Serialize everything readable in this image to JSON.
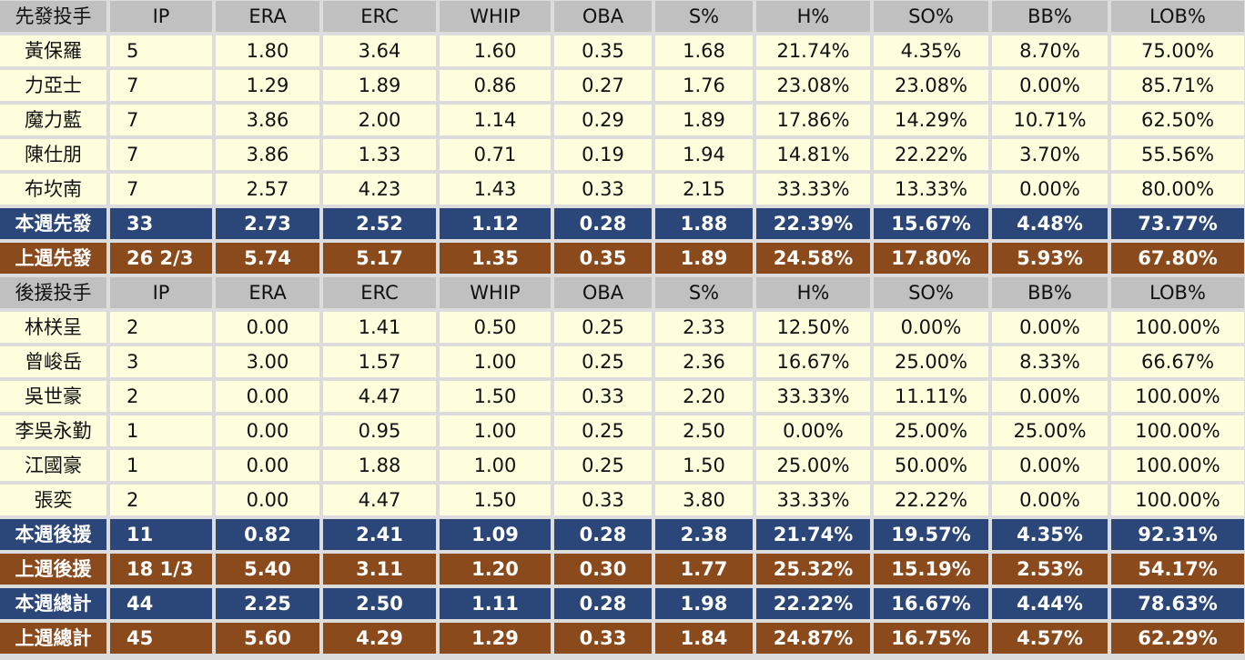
{
  "columns": [
    "IP",
    "ERA",
    "ERC",
    "WHIP",
    "OBA",
    "S%",
    "H%",
    "SO%",
    "BB%",
    "LOB%"
  ],
  "colors": {
    "header": "#c0c0c0",
    "player": "#ffffde",
    "this_week": "#2b4779",
    "last_week": "#8b4a1c"
  },
  "rows": [
    {
      "type": "hd",
      "cells": [
        "先發投手",
        "IP",
        "ERA",
        "ERC",
        "WHIP",
        "OBA",
        "S%",
        "H%",
        "SO%",
        "BB%",
        "LOB%"
      ]
    },
    {
      "type": "pl",
      "cells": [
        "黃保羅",
        "5",
        "1.80",
        "3.64",
        "1.60",
        "0.35",
        "1.68",
        "21.74%",
        "4.35%",
        "8.70%",
        "75.00%"
      ]
    },
    {
      "type": "pl",
      "cells": [
        "力亞士",
        "7",
        "1.29",
        "1.89",
        "0.86",
        "0.27",
        "1.76",
        "23.08%",
        "23.08%",
        "0.00%",
        "85.71%"
      ]
    },
    {
      "type": "pl",
      "cells": [
        "魔力藍",
        "7",
        "3.86",
        "2.00",
        "1.14",
        "0.29",
        "1.89",
        "17.86%",
        "14.29%",
        "10.71%",
        "62.50%"
      ]
    },
    {
      "type": "pl",
      "cells": [
        "陳仕朋",
        "7",
        "3.86",
        "1.33",
        "0.71",
        "0.19",
        "1.94",
        "14.81%",
        "22.22%",
        "3.70%",
        "55.56%"
      ]
    },
    {
      "type": "pl",
      "cells": [
        "布坎南",
        "7",
        "2.57",
        "4.23",
        "1.43",
        "0.33",
        "2.15",
        "33.33%",
        "13.33%",
        "0.00%",
        "80.00%"
      ]
    },
    {
      "type": "cw",
      "cells": [
        "本週先發",
        "33",
        "2.73",
        "2.52",
        "1.12",
        "0.28",
        "1.88",
        "22.39%",
        "15.67%",
        "4.48%",
        "73.77%"
      ]
    },
    {
      "type": "lw",
      "cells": [
        "上週先發",
        "26 2/3",
        "5.74",
        "5.17",
        "1.35",
        "0.35",
        "1.89",
        "24.58%",
        "17.80%",
        "5.93%",
        "67.80%"
      ]
    },
    {
      "type": "hd",
      "cells": [
        "後援投手",
        "IP",
        "ERA",
        "ERC",
        "WHIP",
        "OBA",
        "S%",
        "H%",
        "SO%",
        "BB%",
        "LOB%"
      ]
    },
    {
      "type": "pl",
      "cells": [
        "林栚呈",
        "2",
        "0.00",
        "1.41",
        "0.50",
        "0.25",
        "2.33",
        "12.50%",
        "0.00%",
        "0.00%",
        "100.00%"
      ]
    },
    {
      "type": "pl",
      "cells": [
        "曾峻岳",
        "3",
        "3.00",
        "1.57",
        "1.00",
        "0.25",
        "2.36",
        "16.67%",
        "25.00%",
        "8.33%",
        "66.67%"
      ]
    },
    {
      "type": "pl",
      "cells": [
        "吳世豪",
        "2",
        "0.00",
        "4.47",
        "1.50",
        "0.33",
        "2.20",
        "33.33%",
        "11.11%",
        "0.00%",
        "100.00%"
      ]
    },
    {
      "type": "pl",
      "cells": [
        "李吳永勤",
        "1",
        "0.00",
        "0.95",
        "1.00",
        "0.25",
        "2.50",
        "0.00%",
        "25.00%",
        "25.00%",
        "100.00%"
      ]
    },
    {
      "type": "pl",
      "cells": [
        "江國豪",
        "1",
        "0.00",
        "1.88",
        "1.00",
        "0.25",
        "1.50",
        "25.00%",
        "50.00%",
        "0.00%",
        "100.00%"
      ]
    },
    {
      "type": "pl",
      "cells": [
        "張奕",
        "2",
        "0.00",
        "4.47",
        "1.50",
        "0.33",
        "3.80",
        "33.33%",
        "22.22%",
        "0.00%",
        "100.00%"
      ]
    },
    {
      "type": "cw",
      "cells": [
        "本週後援",
        "11",
        "0.82",
        "2.41",
        "1.09",
        "0.28",
        "2.38",
        "21.74%",
        "19.57%",
        "4.35%",
        "92.31%"
      ]
    },
    {
      "type": "lw",
      "cells": [
        "上週後援",
        "18 1/3",
        "5.40",
        "3.11",
        "1.20",
        "0.30",
        "1.77",
        "25.32%",
        "15.19%",
        "2.53%",
        "54.17%"
      ]
    },
    {
      "type": "cw",
      "cells": [
        "本週總計",
        "44",
        "2.25",
        "2.50",
        "1.11",
        "0.28",
        "1.98",
        "22.22%",
        "16.67%",
        "4.44%",
        "78.63%"
      ]
    },
    {
      "type": "lw",
      "cells": [
        "上週總計",
        "45",
        "5.60",
        "4.29",
        "1.29",
        "0.33",
        "1.84",
        "24.87%",
        "16.75%",
        "4.57%",
        "62.29%"
      ]
    }
  ]
}
